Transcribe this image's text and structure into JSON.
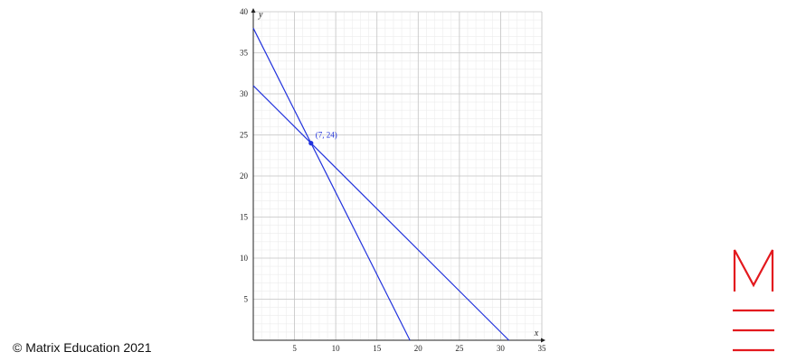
{
  "chart_data": {
    "type": "line",
    "xlabel": "x",
    "ylabel": "y",
    "xlim": [
      0,
      35
    ],
    "ylim": [
      0,
      40
    ],
    "xticks": [
      5,
      10,
      15,
      20,
      25,
      30,
      35
    ],
    "yticks": [
      5,
      10,
      15,
      20,
      25,
      30,
      35,
      40
    ],
    "grid": true,
    "series": [
      {
        "color": "#2233dd",
        "x": [
          0,
          19
        ],
        "values": [
          38,
          0
        ]
      },
      {
        "color": "#2233dd",
        "x": [
          0,
          31
        ],
        "values": [
          31,
          0
        ]
      }
    ],
    "points": [
      {
        "x": 7,
        "y": 24,
        "label": "(7, 24)",
        "color": "#2233dd"
      }
    ]
  },
  "footer": {
    "copyright": "© Matrix Education 2021"
  }
}
